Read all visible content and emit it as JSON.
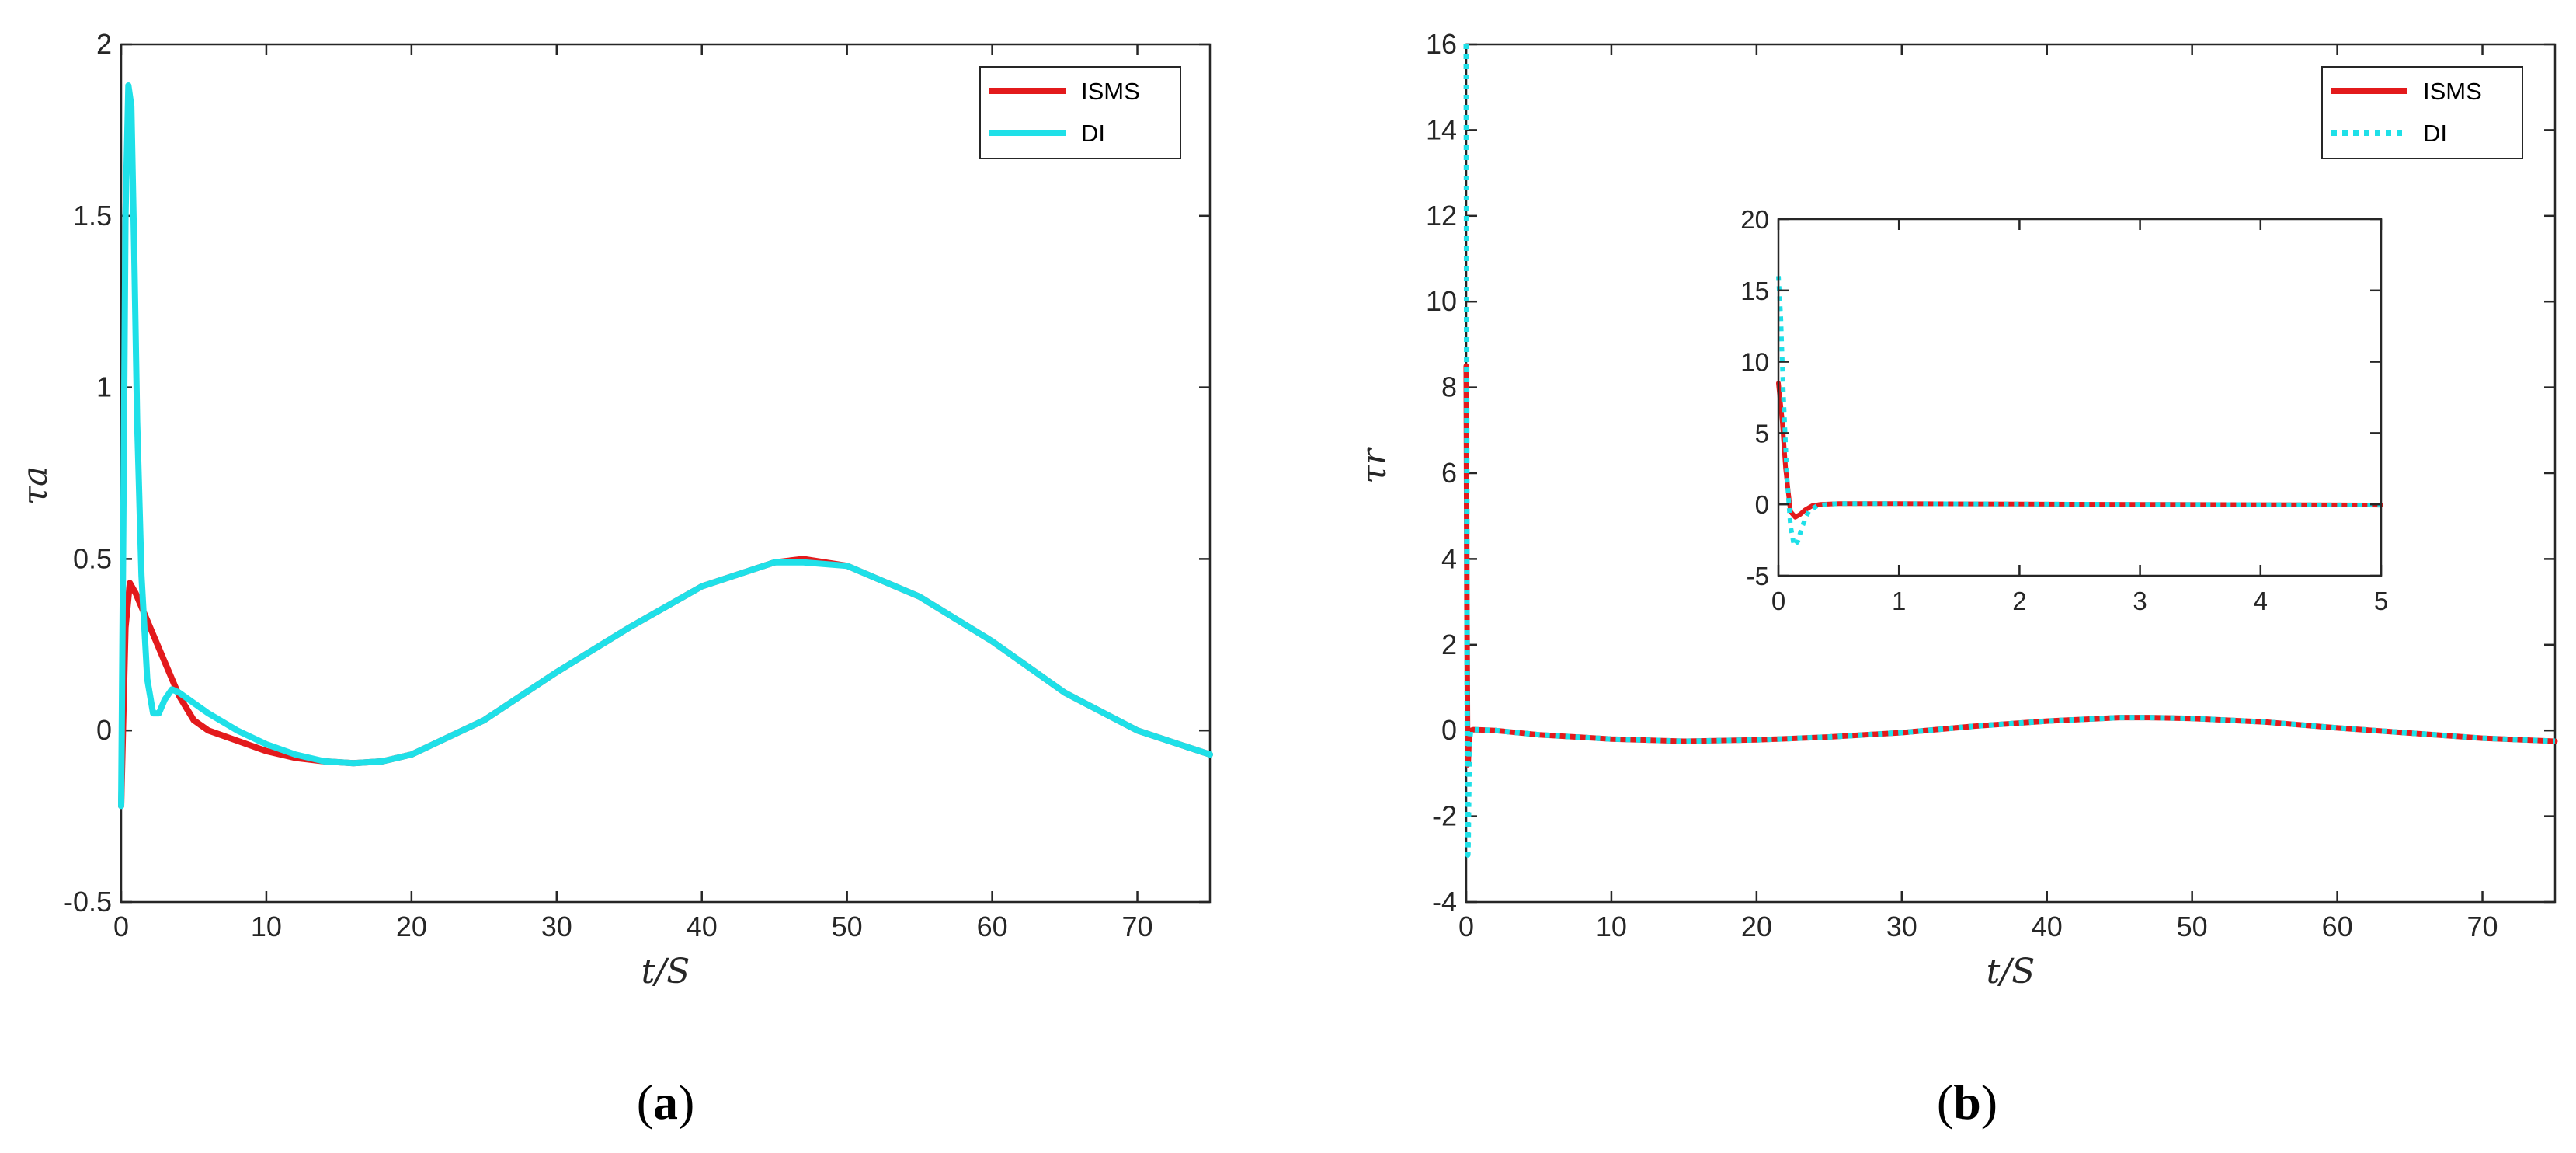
{
  "panels": [
    {
      "id": "a",
      "label_prefix": "(",
      "label_letter": "a",
      "label_suffix": ")",
      "xlabel": "t/S",
      "ylabel": "τa",
      "xticks": [
        "0",
        "10",
        "20",
        "30",
        "40",
        "50",
        "60",
        "70"
      ],
      "yticks": [
        "-0.5",
        "0",
        "0.5",
        "1",
        "1.5",
        "2"
      ]
    },
    {
      "id": "b",
      "label_prefix": "(",
      "label_letter": "b",
      "label_suffix": ")",
      "xlabel": "t/S",
      "ylabel": "τr",
      "xticks": [
        "0",
        "10",
        "20",
        "30",
        "40",
        "50",
        "60",
        "70"
      ],
      "yticks": [
        "-4",
        "-2",
        "0",
        "2",
        "4",
        "6",
        "8",
        "10",
        "12",
        "14",
        "16"
      ],
      "inset": {
        "xticks": [
          "0",
          "1",
          "2",
          "3",
          "4",
          "5"
        ],
        "yticks": [
          "-5",
          "0",
          "5",
          "10",
          "15",
          "20"
        ]
      }
    }
  ],
  "legend": {
    "entry1": "ISMS",
    "entry2": "DI"
  },
  "colors": {
    "isms": "#e31a1c",
    "di": "#1fe0e8",
    "axis": "#262626"
  },
  "chart_data": [
    {
      "type": "line",
      "xlim": [
        0,
        75
      ],
      "ylim": [
        -0.5,
        2
      ],
      "grid": false,
      "legend_position": "top-right",
      "series": [
        {
          "name": "ISMS",
          "style": "solid",
          "x": [
            0,
            0.3,
            0.6,
            1,
            2,
            3,
            4,
            5,
            6,
            8,
            10,
            12,
            14,
            16,
            18,
            20,
            25,
            30,
            35,
            40,
            45,
            47,
            50,
            55,
            60,
            65,
            70,
            75
          ],
          "y": [
            -0.22,
            0.3,
            0.43,
            0.4,
            0.3,
            0.2,
            0.1,
            0.03,
            0.0,
            -0.03,
            -0.06,
            -0.08,
            -0.09,
            -0.095,
            -0.09,
            -0.07,
            0.03,
            0.17,
            0.3,
            0.42,
            0.49,
            0.5,
            0.48,
            0.39,
            0.26,
            0.11,
            0.0,
            -0.07
          ]
        },
        {
          "name": "DI",
          "style": "solid",
          "x": [
            0,
            0.15,
            0.3,
            0.5,
            0.7,
            0.9,
            1.1,
            1.4,
            1.8,
            2.2,
            2.6,
            3.0,
            3.5,
            4.0,
            5.0,
            6.0,
            8.0,
            10,
            12,
            14,
            16,
            18,
            20,
            25,
            30,
            35,
            40,
            45,
            47,
            50,
            55,
            60,
            65,
            70,
            75
          ],
          "y": [
            -0.22,
            0.6,
            1.5,
            1.88,
            1.82,
            1.4,
            0.9,
            0.45,
            0.15,
            0.05,
            0.05,
            0.09,
            0.12,
            0.11,
            0.08,
            0.05,
            0.0,
            -0.04,
            -0.07,
            -0.09,
            -0.095,
            -0.09,
            -0.07,
            0.03,
            0.17,
            0.3,
            0.42,
            0.49,
            0.49,
            0.48,
            0.39,
            0.26,
            0.11,
            0.0,
            -0.07
          ]
        }
      ]
    },
    {
      "type": "line",
      "xlim": [
        0,
        75
      ],
      "ylim": [
        -4,
        16
      ],
      "grid": false,
      "legend_position": "top-right",
      "series": [
        {
          "name": "ISMS",
          "style": "solid",
          "x": [
            0,
            0.05,
            0.1,
            0.15,
            0.2,
            0.3,
            0.5,
            2,
            5,
            10,
            15,
            20,
            25,
            30,
            35,
            40,
            45,
            47,
            50,
            55,
            60,
            65,
            70,
            75
          ],
          "y": [
            8.5,
            3,
            -0.8,
            -0.7,
            -0.2,
            0.0,
            0.02,
            0.0,
            -0.1,
            -0.2,
            -0.25,
            -0.22,
            -0.15,
            -0.05,
            0.1,
            0.22,
            0.3,
            0.3,
            0.28,
            0.2,
            0.06,
            -0.06,
            -0.18,
            -0.25
          ]
        },
        {
          "name": "DI",
          "style": "dotted",
          "x": [
            0,
            0.02,
            0.05,
            0.08,
            0.11,
            0.14,
            0.18,
            0.22,
            0.3,
            0.5,
            2,
            5,
            10,
            15,
            20,
            25,
            30,
            35,
            40,
            45,
            47,
            50,
            55,
            60,
            65,
            70,
            75
          ],
          "y": [
            16,
            12,
            4,
            -1.5,
            -2.9,
            -2.5,
            -1.2,
            -0.3,
            0.0,
            0.02,
            0.0,
            -0.1,
            -0.2,
            -0.25,
            -0.22,
            -0.15,
            -0.05,
            0.1,
            0.22,
            0.3,
            0.3,
            0.28,
            0.2,
            0.06,
            -0.06,
            -0.18,
            -0.25
          ]
        }
      ]
    },
    {
      "type": "line",
      "role": "inset",
      "xlim": [
        0,
        5
      ],
      "ylim": [
        -5,
        20
      ],
      "grid": false,
      "series": [
        {
          "name": "ISMS",
          "style": "solid",
          "x": [
            0,
            0.03,
            0.06,
            0.1,
            0.14,
            0.18,
            0.22,
            0.28,
            0.35,
            0.5,
            1,
            2,
            3,
            4,
            5
          ],
          "y": [
            8.5,
            6,
            2.5,
            -0.5,
            -0.9,
            -0.7,
            -0.4,
            -0.1,
            0.0,
            0.05,
            0.05,
            0.02,
            0.0,
            -0.02,
            -0.05
          ]
        },
        {
          "name": "DI",
          "style": "dotted",
          "x": [
            0,
            0.02,
            0.04,
            0.07,
            0.1,
            0.13,
            0.16,
            0.2,
            0.25,
            0.32,
            0.4,
            0.5,
            1,
            2,
            3,
            4,
            5
          ],
          "y": [
            16,
            13,
            8,
            2,
            -1.5,
            -2.9,
            -2.6,
            -1.5,
            -0.5,
            -0.1,
            0.0,
            0.05,
            0.05,
            0.02,
            0.0,
            -0.02,
            -0.05
          ]
        }
      ]
    }
  ]
}
